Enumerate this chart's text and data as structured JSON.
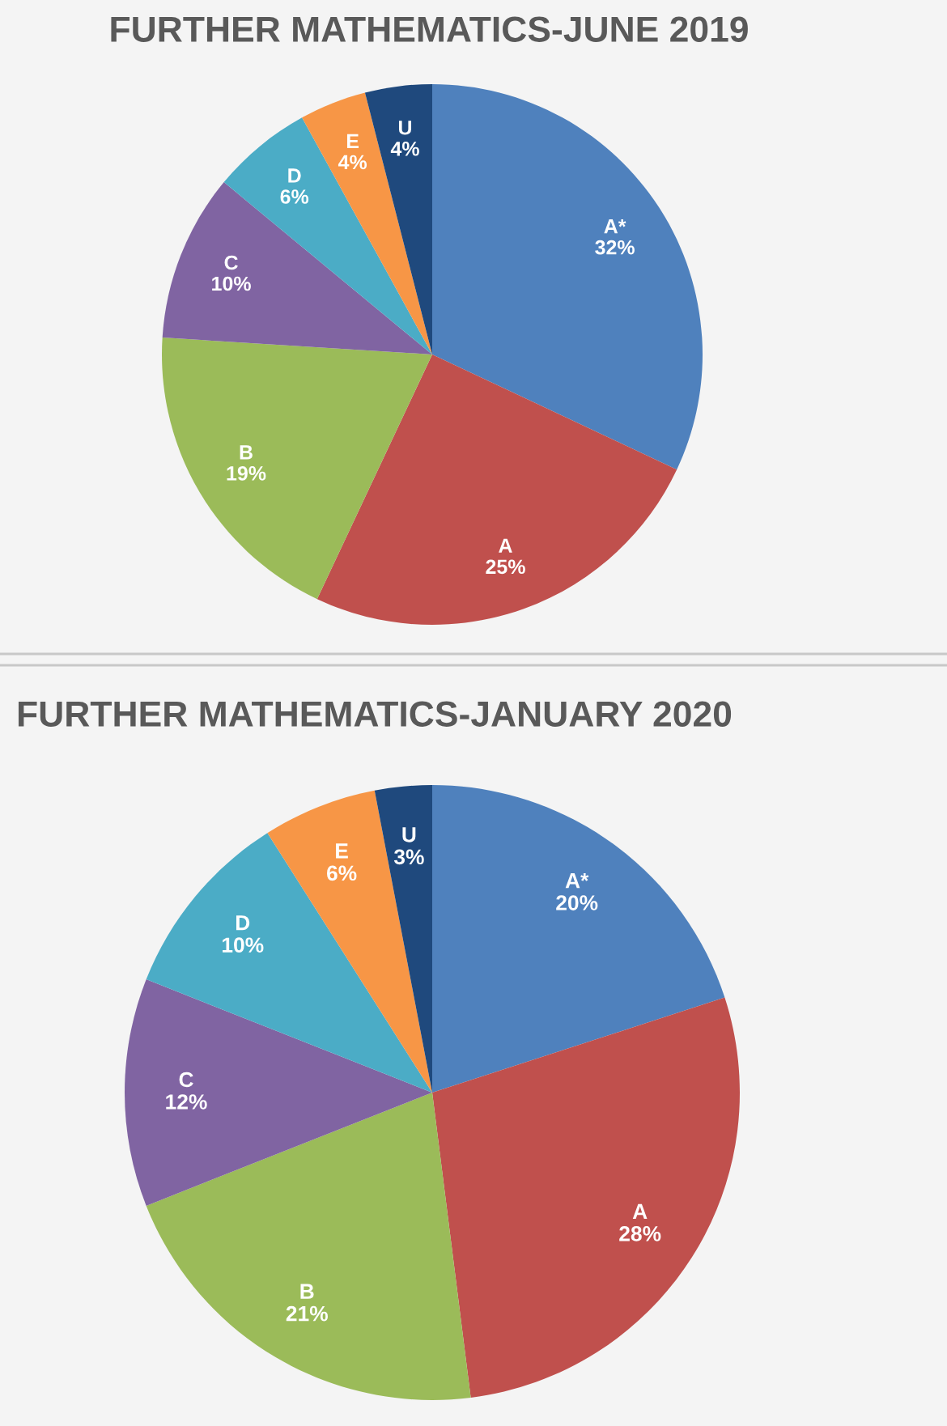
{
  "chart_data": [
    {
      "type": "pie",
      "title": "FURTHER MATHEMATICS-JUNE 2019",
      "categories": [
        "A*",
        "A",
        "B",
        "C",
        "D",
        "E",
        "U"
      ],
      "values": [
        32,
        25,
        19,
        10,
        6,
        4,
        4
      ],
      "colors": [
        "#4f81bd",
        "#c0504d",
        "#9bbb59",
        "#8064a2",
        "#4bacc6",
        "#f79646",
        "#1f497d"
      ],
      "value_labels": [
        "32%",
        "25%",
        "19%",
        "10%",
        "6%",
        "4%",
        "4%"
      ]
    },
    {
      "type": "pie",
      "title": "FURTHER MATHEMATICS-JANUARY 2020",
      "categories": [
        "A*",
        "A",
        "B",
        "C",
        "D",
        "E",
        "U"
      ],
      "values": [
        20,
        28,
        21,
        12,
        10,
        6,
        3
      ],
      "colors": [
        "#4f81bd",
        "#c0504d",
        "#9bbb59",
        "#8064a2",
        "#4bacc6",
        "#f79646",
        "#1f497d"
      ],
      "value_labels": [
        "20%",
        "28%",
        "21%",
        "12%",
        "10%",
        "6%",
        "3%"
      ]
    }
  ]
}
